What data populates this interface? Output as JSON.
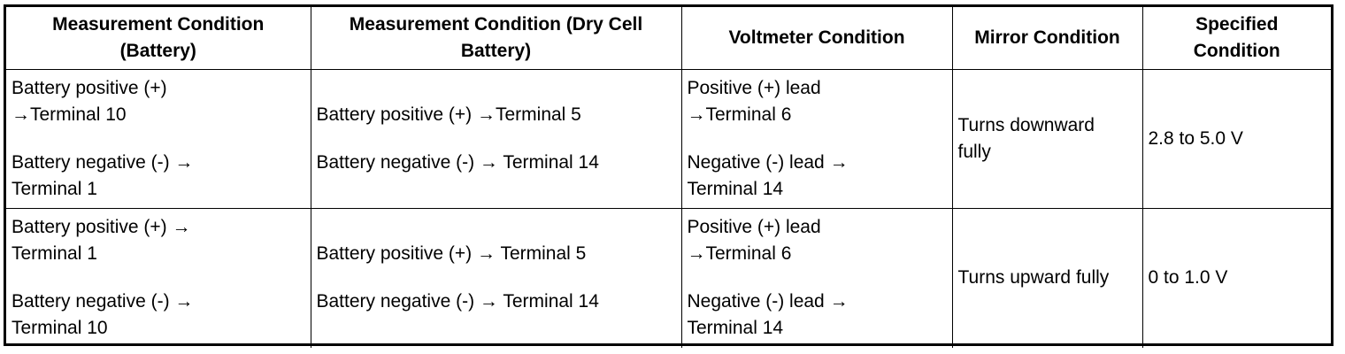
{
  "table": {
    "headers": [
      "Measurement Condition\n(Battery)",
      "Measurement Condition (Dry Cell\nBattery)",
      "Voltmeter Condition",
      "Mirror Condition",
      "Specified\nCondition"
    ],
    "rows": [
      {
        "battery": [
          "Battery positive (+)\n→Terminal 10",
          "Battery negative (-) →\nTerminal 1"
        ],
        "dry_cell": [
          "Battery positive (+) →Terminal 5",
          "Battery negative (-) → Terminal 14"
        ],
        "voltmeter": [
          "Positive (+) lead\n→Terminal 6",
          "Negative (-) lead →\nTerminal 14"
        ],
        "mirror": "Turns downward\nfully",
        "specified": "2.8 to 5.0 V"
      },
      {
        "battery": [
          "Battery positive (+) →\nTerminal 1",
          "Battery negative (-) →\nTerminal 10"
        ],
        "dry_cell": [
          "Battery positive (+) → Terminal 5",
          "Battery negative (-) → Terminal 14"
        ],
        "voltmeter": [
          "Positive (+) lead\n→Terminal 6",
          "Negative (-) lead →\nTerminal 14"
        ],
        "mirror": "Turns upward fully",
        "specified": "0 to 1.0 V"
      }
    ]
  }
}
